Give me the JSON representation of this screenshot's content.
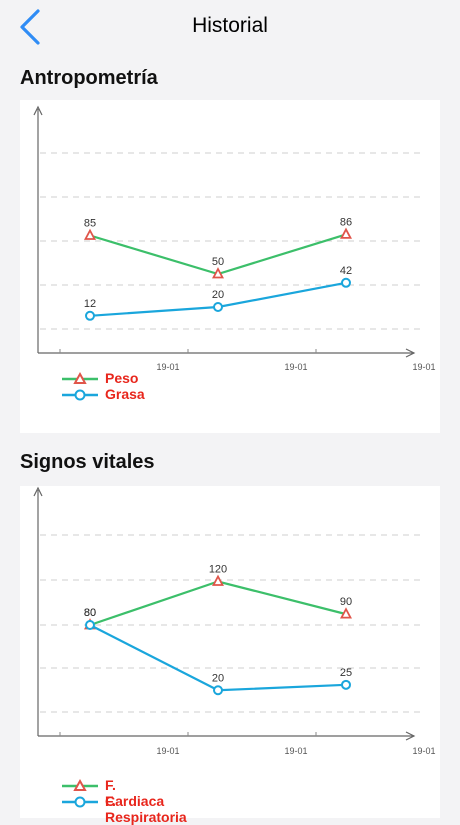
{
  "navbar": {
    "title": "Historial",
    "back_icon": "chevron-left-icon"
  },
  "colors": {
    "accent": "#2f8cf5",
    "series_a": "#3cbf6a",
    "series_b": "#1aa6dc",
    "marker": "#e0554a",
    "legend_text": "#e8261c"
  },
  "sections": [
    {
      "title": "Antropometría"
    },
    {
      "title": "Signos vitales"
    }
  ],
  "chart_data": [
    {
      "type": "line",
      "categories": [
        "19-01",
        "19-01",
        "19-01"
      ],
      "series": [
        {
          "name": "Peso",
          "marker": "triangle",
          "values": [
            85,
            50,
            86
          ]
        },
        {
          "name": "Grasa",
          "marker": "circle",
          "values": [
            12,
            20,
            42
          ]
        }
      ],
      "legend": "bottom-left",
      "grid": "horizontal-dashed"
    },
    {
      "type": "line",
      "categories": [
        "19-01",
        "19-01",
        "19-01"
      ],
      "series": [
        {
          "name": "F. Cardiaca",
          "marker": "triangle",
          "values": [
            80,
            120,
            90
          ]
        },
        {
          "name": "F. Respiratoria",
          "marker": "circle",
          "values": [
            80,
            20,
            25
          ]
        }
      ],
      "legend": "bottom-left",
      "grid": "horizontal-dashed"
    }
  ]
}
